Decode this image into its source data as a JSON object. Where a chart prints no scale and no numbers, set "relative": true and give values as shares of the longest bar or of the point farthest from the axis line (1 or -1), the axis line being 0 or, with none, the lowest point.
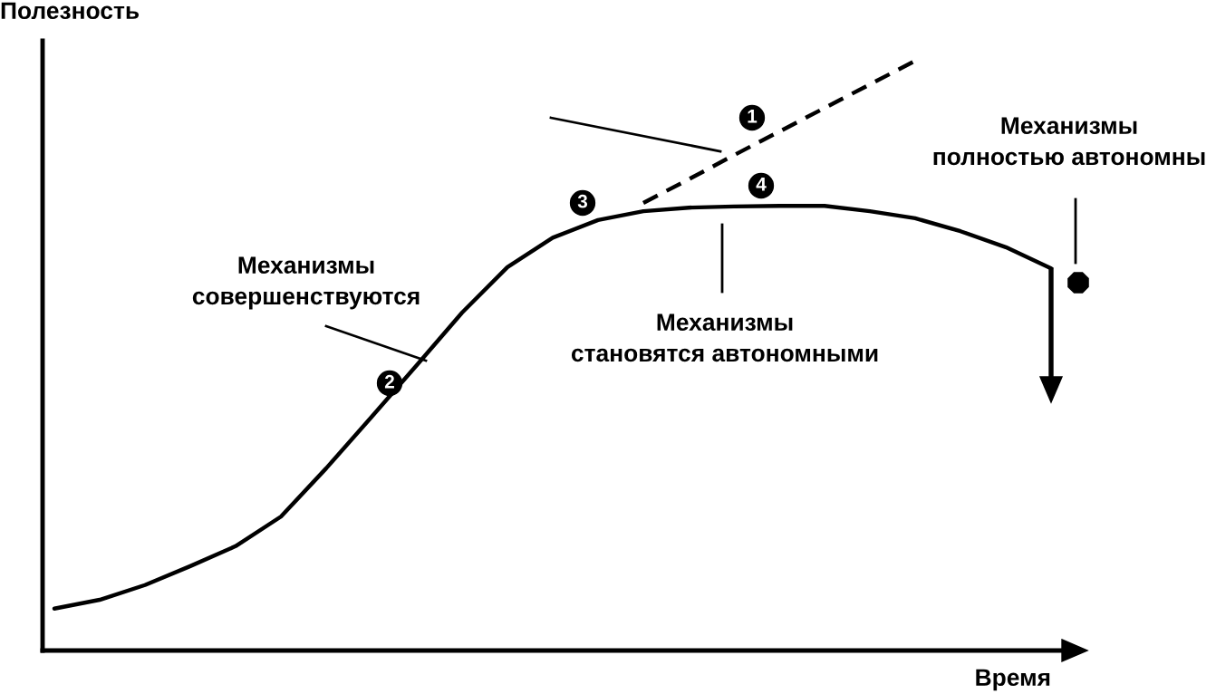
{
  "chart_data": {
    "type": "line",
    "relative": true,
    "xlabel": "Время",
    "ylabel": "Полезность",
    "grid": false,
    "legend": false,
    "categories": [
      null,
      null,
      null,
      null,
      null,
      null,
      null,
      null,
      null,
      null,
      null,
      null,
      null,
      null,
      null,
      null,
      null,
      null,
      null,
      null,
      null,
      null,
      null
    ],
    "series": [
      {
        "color": "#000000",
        "line_style": "solid",
        "values": [
          0.071,
          0.086,
          0.111,
          0.143,
          0.177,
          0.227,
          0.309,
          0.396,
          0.484,
          0.573,
          0.65,
          0.7,
          0.73,
          0.745,
          0.751,
          0.753,
          0.754,
          0.754,
          0.745,
          0.733,
          0.711,
          0.684,
          0.648
        ]
      },
      {
        "color": "#000000",
        "line_style": "dashed",
        "values": [
          null,
          null,
          null,
          null,
          null,
          null,
          null,
          null,
          null,
          null,
          null,
          null,
          null,
          0.759,
          0.799,
          0.84,
          0.88,
          0.92,
          0.96,
          1.0,
          null,
          null,
          null
        ]
      }
    ],
    "annotations": [
      "Механизмы\nсовершенствуются",
      "Механизмы\nстановятся автономными",
      "Механизмы\nполностью автономны",
      "1",
      "2",
      "3",
      "4"
    ]
  }
}
